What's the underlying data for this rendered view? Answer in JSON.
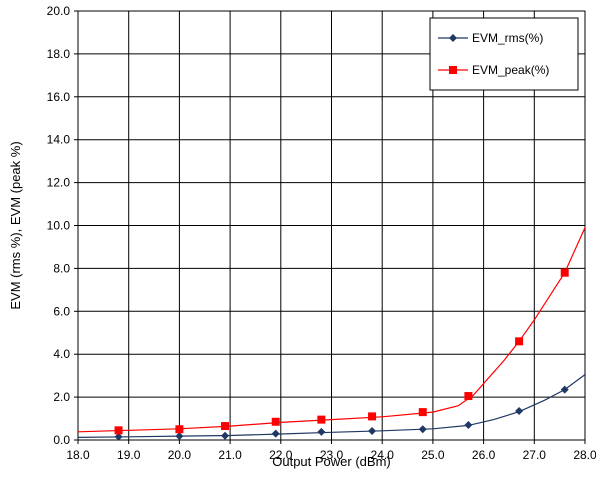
{
  "chart_data": {
    "type": "line",
    "xlabel": "Output Power (dBm)",
    "ylabel": "EVM (rms %), EVM (peak %)",
    "xlim": [
      18.0,
      28.0
    ],
    "ylim": [
      0.0,
      20.0
    ],
    "x_ticks": [
      18.0,
      19.0,
      20.0,
      21.0,
      22.0,
      23.0,
      24.0,
      25.0,
      26.0,
      27.0,
      28.0
    ],
    "x_tick_labels": [
      "18.0",
      "19.0",
      "20.0",
      "21.0",
      "22.0",
      "23.0",
      "24.0",
      "25.0",
      "26.0",
      "27.0",
      "28.0"
    ],
    "y_ticks": [
      0,
      2,
      4,
      6,
      8,
      10,
      12,
      14,
      16,
      18,
      20
    ],
    "y_tick_labels": [
      "0.0",
      "2.0",
      "4.0",
      "6.0",
      "8.0",
      "10.0",
      "12.0",
      "14.0",
      "16.0",
      "18.0",
      "20.0"
    ],
    "grid": true,
    "legend_position": "top-right",
    "series": [
      {
        "name": "EVM_rms(%)",
        "color": "#1f3864",
        "marker": "diamond",
        "points": {
          "x": [
            18.8,
            20.0,
            20.9,
            21.9,
            22.8,
            23.8,
            24.8,
            25.7,
            26.7,
            27.6
          ],
          "y": [
            0.15,
            0.18,
            0.2,
            0.3,
            0.38,
            0.42,
            0.5,
            0.7,
            1.35,
            2.35
          ]
        },
        "curve": {
          "x": [
            18.0,
            19.0,
            20.0,
            21.0,
            22.0,
            23.0,
            24.0,
            25.0,
            25.7,
            26.2,
            26.7,
            27.2,
            27.6,
            28.0
          ],
          "y": [
            0.12,
            0.15,
            0.18,
            0.21,
            0.28,
            0.36,
            0.43,
            0.52,
            0.68,
            0.95,
            1.32,
            1.85,
            2.35,
            3.05
          ]
        }
      },
      {
        "name": "EVM_peak(%)",
        "color": "#ff0000",
        "marker": "square",
        "points": {
          "x": [
            18.8,
            20.0,
            20.9,
            21.9,
            22.8,
            23.8,
            24.8,
            25.7,
            26.7,
            27.6
          ],
          "y": [
            0.45,
            0.5,
            0.65,
            0.85,
            0.95,
            1.1,
            1.3,
            2.05,
            4.6,
            7.8
          ]
        },
        "curve": {
          "x": [
            18.0,
            19.0,
            20.0,
            21.0,
            22.0,
            23.0,
            24.0,
            25.0,
            25.5,
            25.8,
            26.1,
            26.4,
            26.7,
            27.0,
            27.3,
            27.6,
            28.0
          ],
          "y": [
            0.38,
            0.45,
            0.52,
            0.65,
            0.82,
            0.95,
            1.08,
            1.3,
            1.6,
            2.1,
            2.9,
            3.7,
            4.6,
            5.6,
            6.7,
            7.8,
            9.9
          ]
        }
      }
    ]
  }
}
